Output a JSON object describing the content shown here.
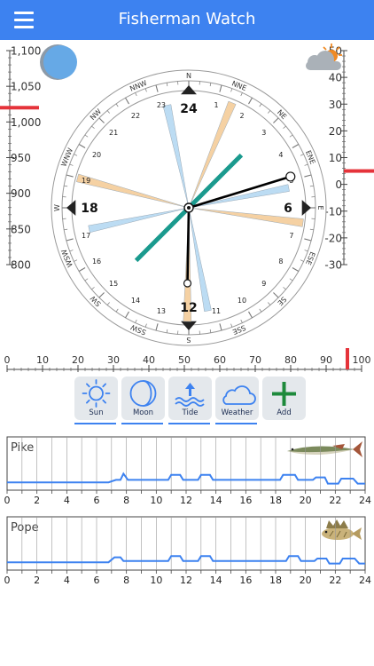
{
  "app": {
    "title": "Fisherman Watch"
  },
  "colors": {
    "appbar": "#3d82f0",
    "marker": "#e5333a",
    "hand": "#000000",
    "wind_arrow": "#1a9a8e",
    "ray_sun": "#f5d1a3",
    "ray_moon": "#bcdcf3",
    "curve": "#3d82f0"
  },
  "icons": {
    "menu": "hamburger-icon",
    "moon": "moon-phase-icon",
    "weather": "partly-cloudy-icon"
  },
  "pressure_scale": {
    "labels": [
      "1,100",
      "1,050",
      "1,000",
      "950",
      "900",
      "850",
      "800"
    ],
    "current": 1020
  },
  "temperature_scale": {
    "labels": [
      "50",
      "40",
      "30",
      "20",
      "10",
      "0",
      "-10",
      "-20",
      "-30"
    ],
    "current": 5
  },
  "clock": {
    "directions": [
      "N",
      "NNE",
      "NE",
      "ENE",
      "E",
      "ESE",
      "SE",
      "SSE",
      "S",
      "SSW",
      "SW",
      "WSW",
      "W",
      "WNW",
      "NW",
      "NNW"
    ],
    "hours": [
      "1",
      "2",
      "3",
      "4",
      "5",
      "6",
      "7",
      "8",
      "9",
      "10",
      "11",
      "12",
      "13",
      "14",
      "15",
      "16",
      "17",
      "18",
      "19",
      "20",
      "21",
      "22",
      "23",
      "24"
    ],
    "major_hours": [
      "24",
      "6",
      "12",
      "18"
    ]
  },
  "percent_scale": {
    "labels": [
      "0",
      "10",
      "20",
      "30",
      "40",
      "50",
      "60",
      "70",
      "80",
      "90",
      "100"
    ],
    "current": 96
  },
  "toolbar": {
    "sun": "Sun",
    "moon": "Moon",
    "tide": "Tide",
    "weather": "Weather",
    "add": "Add"
  },
  "fish": [
    {
      "name": "Pike",
      "activity": [
        [
          0,
          0.1
        ],
        [
          6.8,
          0.1
        ],
        [
          7.3,
          0.2
        ],
        [
          7.6,
          0.2
        ],
        [
          7.8,
          0.45
        ],
        [
          8.1,
          0.2
        ],
        [
          10.8,
          0.2
        ],
        [
          11,
          0.4
        ],
        [
          11.6,
          0.4
        ],
        [
          11.8,
          0.2
        ],
        [
          12.8,
          0.2
        ],
        [
          13,
          0.4
        ],
        [
          13.6,
          0.4
        ],
        [
          13.8,
          0.2
        ],
        [
          18.3,
          0.2
        ],
        [
          18.5,
          0.4
        ],
        [
          19.3,
          0.4
        ],
        [
          19.5,
          0.2
        ],
        [
          20.5,
          0.2
        ],
        [
          20.7,
          0.3
        ],
        [
          21.3,
          0.3
        ],
        [
          21.5,
          0.05
        ],
        [
          22.2,
          0.05
        ],
        [
          22.4,
          0.25
        ],
        [
          23.2,
          0.25
        ],
        [
          23.5,
          0.05
        ],
        [
          24,
          0.05
        ]
      ]
    },
    {
      "name": "Pope",
      "activity": [
        [
          0,
          0.1
        ],
        [
          6.8,
          0.1
        ],
        [
          7.2,
          0.3
        ],
        [
          7.6,
          0.3
        ],
        [
          7.8,
          0.15
        ],
        [
          10.8,
          0.15
        ],
        [
          11,
          0.35
        ],
        [
          11.6,
          0.35
        ],
        [
          11.8,
          0.15
        ],
        [
          12.8,
          0.15
        ],
        [
          13,
          0.35
        ],
        [
          13.6,
          0.35
        ],
        [
          13.8,
          0.15
        ],
        [
          18.7,
          0.15
        ],
        [
          18.9,
          0.35
        ],
        [
          19.5,
          0.35
        ],
        [
          19.7,
          0.15
        ],
        [
          20.6,
          0.15
        ],
        [
          20.8,
          0.25
        ],
        [
          21.4,
          0.25
        ],
        [
          21.6,
          0.05
        ],
        [
          22.3,
          0.05
        ],
        [
          22.5,
          0.25
        ],
        [
          23.3,
          0.25
        ],
        [
          23.6,
          0.05
        ],
        [
          24,
          0.05
        ]
      ]
    }
  ],
  "hour_axis": [
    "0",
    "2",
    "4",
    "6",
    "8",
    "10",
    "12",
    "14",
    "16",
    "18",
    "20",
    "22",
    "24"
  ]
}
